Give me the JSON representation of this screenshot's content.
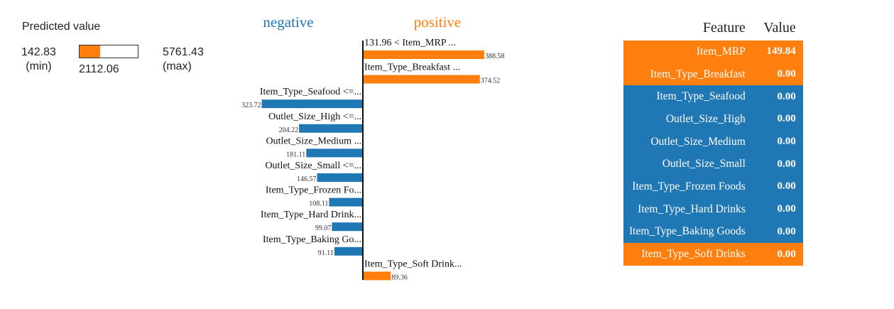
{
  "colors": {
    "negative": "#1f77b4",
    "positive": "#ff7f0e"
  },
  "predicted": {
    "title": "Predicted value",
    "min_value": "142.83",
    "min_label": "(min)",
    "max_value": "5761.43",
    "max_label": "(max)",
    "value": "2112.06",
    "fill_fraction": 0.35
  },
  "chart_data": {
    "type": "bar",
    "headers": {
      "negative": "negative",
      "positive": "positive"
    },
    "bars": [
      {
        "label": "131.96 < Item_MRP ...",
        "value": 388.58,
        "value_label": "388.58",
        "side": "positive"
      },
      {
        "label": "Item_Type_Breakfast ...",
        "value": 374.52,
        "value_label": "374.52",
        "side": "positive"
      },
      {
        "label": "Item_Type_Seafood <=...",
        "value": 323.72,
        "value_label": "323.72",
        "side": "negative"
      },
      {
        "label": "Outlet_Size_High <=...",
        "value": 204.22,
        "value_label": "204.22",
        "side": "negative"
      },
      {
        "label": "Outlet_Size_Medium ...",
        "value": 181.11,
        "value_label": "181.11",
        "side": "negative"
      },
      {
        "label": "Outlet_Size_Small <=...",
        "value": 146.57,
        "value_label": "146.57",
        "side": "negative"
      },
      {
        "label": "Item_Type_Frozen Fo...",
        "value": 108.11,
        "value_label": "108.11",
        "side": "negative"
      },
      {
        "label": "Item_Type_Hard Drink...",
        "value": 99.07,
        "value_label": "99.07",
        "side": "negative"
      },
      {
        "label": "Item_Type_Baking Go...",
        "value": 91.11,
        "value_label": "91.11",
        "side": "negative"
      },
      {
        "label": "Item_Type_Soft Drink...",
        "value": 89.36,
        "value_label": "89.36",
        "side": "positive"
      }
    ]
  },
  "table": {
    "headers": {
      "feature": "Feature",
      "value": "Value"
    },
    "rows": [
      {
        "feature": "Item_MRP",
        "value": "149.84",
        "side": "positive"
      },
      {
        "feature": "Item_Type_Breakfast",
        "value": "0.00",
        "side": "positive"
      },
      {
        "feature": "Item_Type_Seafood",
        "value": "0.00",
        "side": "negative"
      },
      {
        "feature": "Outlet_Size_High",
        "value": "0.00",
        "side": "negative"
      },
      {
        "feature": "Outlet_Size_Medium",
        "value": "0.00",
        "side": "negative"
      },
      {
        "feature": "Outlet_Size_Small",
        "value": "0.00",
        "side": "negative"
      },
      {
        "feature": "Item_Type_Frozen Foods",
        "value": "0.00",
        "side": "negative"
      },
      {
        "feature": "Item_Type_Hard Drinks",
        "value": "0.00",
        "side": "negative"
      },
      {
        "feature": "Item_Type_Baking Goods",
        "value": "0.00",
        "side": "negative"
      },
      {
        "feature": "Item_Type_Soft Drinks",
        "value": "0.00",
        "side": "positive"
      }
    ]
  }
}
